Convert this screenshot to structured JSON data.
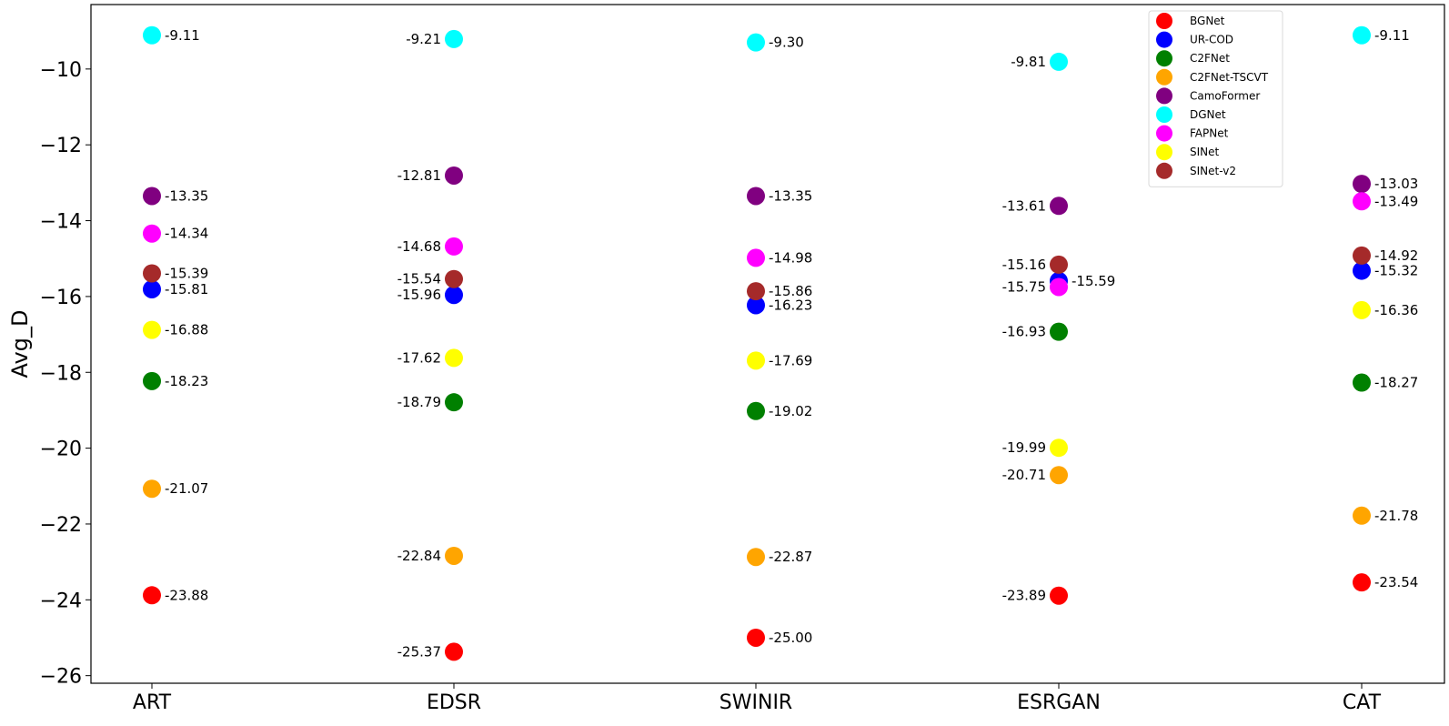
{
  "chart_data": {
    "type": "scatter",
    "ylabel": "Avg_D",
    "xlabel": "",
    "categories": [
      "ART",
      "EDSR",
      "SWINIR",
      "ESRGAN",
      "CAT"
    ],
    "ylim": [
      -26.2,
      -8.3
    ],
    "yticks": [
      -10,
      -12,
      -14,
      -16,
      -18,
      -20,
      -22,
      -24,
      -26
    ],
    "ytick_labels": [
      "−10",
      "−12",
      "−14",
      "−16",
      "−18",
      "−20",
      "−22",
      "−24",
      "−26"
    ],
    "legend_position": "top-right",
    "series": [
      {
        "name": "BGNet",
        "color": "#ff0000",
        "values": [
          -23.88,
          -25.37,
          -25.0,
          -23.89,
          -23.54
        ]
      },
      {
        "name": "UR-COD",
        "color": "#0000ff",
        "values": [
          -15.81,
          -15.96,
          -16.23,
          -15.59,
          -15.32
        ]
      },
      {
        "name": "C2FNet",
        "color": "#008000",
        "values": [
          -18.23,
          -18.79,
          -19.02,
          -16.93,
          -18.27
        ]
      },
      {
        "name": "C2FNet-TSCVT",
        "color": "#ffa500",
        "values": [
          -21.07,
          -22.84,
          -22.87,
          -20.71,
          -21.78
        ]
      },
      {
        "name": "CamoFormer",
        "color": "#800080",
        "values": [
          -13.35,
          -12.81,
          -13.35,
          -13.61,
          -13.03
        ]
      },
      {
        "name": "DGNet",
        "color": "#00ffff",
        "values": [
          -9.11,
          -9.21,
          -9.3,
          -9.81,
          -9.11
        ]
      },
      {
        "name": "FAPNet",
        "color": "#ff00ff",
        "values": [
          -14.34,
          -14.68,
          -14.98,
          -15.75,
          -13.49
        ]
      },
      {
        "name": "SINet",
        "color": "#ffff00",
        "values": [
          -16.88,
          -17.62,
          -17.69,
          -19.99,
          -16.36
        ]
      },
      {
        "name": "SINet-v2",
        "color": "#a52a2a",
        "values": [
          -15.39,
          -15.54,
          -15.86,
          -15.16,
          -14.92
        ]
      }
    ],
    "data_labels": [
      [
        "-23.88",
        "-25.37",
        "-25.00",
        "-23.89",
        "-23.54"
      ],
      [
        "-15.81",
        "-15.96",
        "-16.23",
        "-15.59",
        "-15.32"
      ],
      [
        "-18.23",
        "-18.79",
        "-19.02",
        "-16.93",
        "-18.27"
      ],
      [
        "-21.07",
        "-22.84",
        "-22.87",
        "-20.71",
        "-21.78"
      ],
      [
        "-13.35",
        "-12.81",
        "-13.35",
        "-13.61",
        "-13.03"
      ],
      [
        "-9.11",
        "-9.21",
        "-9.30",
        "-9.81",
        "-9.11"
      ],
      [
        "-14.34",
        "-14.68",
        "-14.98",
        "-15.75",
        "-13.49"
      ],
      [
        "-16.88",
        "-17.62",
        "-17.69",
        "-19.99",
        "-16.36"
      ],
      [
        "-15.39",
        "-15.54",
        "-15.86",
        "-15.16",
        "-14.92"
      ]
    ],
    "label_side": [
      [
        "right",
        "left",
        "right",
        "left",
        "right"
      ],
      [
        "right",
        "left",
        "right",
        "right",
        "right"
      ],
      [
        "right",
        "left",
        "right",
        "left",
        "right"
      ],
      [
        "right",
        "left",
        "right",
        "left",
        "right"
      ],
      [
        "right",
        "left",
        "right",
        "left",
        "right"
      ],
      [
        "right",
        "left",
        "right",
        "left",
        "right"
      ],
      [
        "right",
        "left",
        "right",
        "left",
        "right"
      ],
      [
        "right",
        "left",
        "right",
        "left",
        "right"
      ],
      [
        "right",
        "left",
        "right",
        "left",
        "right"
      ]
    ]
  }
}
